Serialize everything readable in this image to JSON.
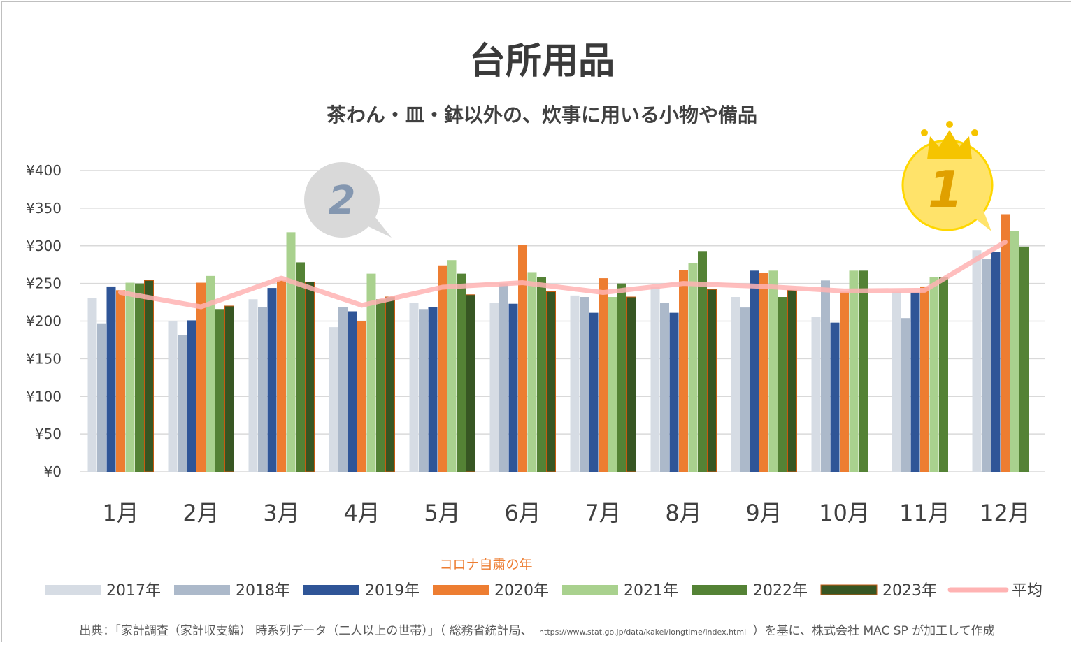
{
  "colors": {
    "2017年": "#d6dce4",
    "2018年": "#acb9ca",
    "2019年": "#2f5597",
    "2020年": "#ed7d31",
    "2021年": "#a9d18e",
    "2022年": "#548235",
    "2023年": "#375623",
    "平均": "#ffb3b3",
    "rank1_fill": "#ffe36a",
    "rank1_text": "#e0a000",
    "rank2_fill": "#d9d9d9",
    "rank2_text": "#8497b0",
    "crown": "#f5c400"
  },
  "annotation": "コロナ自粛の年",
  "ranks": {
    "first": "1",
    "second": "2"
  },
  "source": {
    "prefix": "出典：「家計調査（家計収支編） 時系列データ（二人以上の世帯）」（ 総務省統計局、",
    "url": "https://www.stat.go.jp/data/kakei/longtime/index.html",
    "suffix": "）を基に、株式会社 MAC SP が加工して作成"
  },
  "chart_data": {
    "type": "bar",
    "title": "台所用品",
    "subtitle": "茶わん・皿・鉢以外の、炊事に用いる小物や備品",
    "categories": [
      "1月",
      "2月",
      "3月",
      "4月",
      "5月",
      "6月",
      "7月",
      "8月",
      "9月",
      "10月",
      "11月",
      "12月"
    ],
    "ylim": [
      0,
      400
    ],
    "yticks": [
      0,
      50,
      100,
      150,
      200,
      250,
      300,
      350,
      400
    ],
    "ytick_labels": [
      "¥0",
      "¥50",
      "¥100",
      "¥150",
      "¥200",
      "¥250",
      "¥300",
      "¥350",
      "¥400"
    ],
    "grid": true,
    "legend_position": "bottom",
    "series": [
      {
        "name": "2017年",
        "values": [
          231,
          200,
          229,
          192,
          224,
          224,
          234,
          246,
          232,
          206,
          239,
          294
        ]
      },
      {
        "name": "2018年",
        "values": [
          197,
          181,
          219,
          219,
          216,
          250,
          232,
          224,
          218,
          254,
          204,
          283
        ]
      },
      {
        "name": "2019年",
        "values": [
          246,
          201,
          244,
          213,
          219,
          223,
          211,
          211,
          267,
          198,
          238,
          292
        ]
      },
      {
        "name": "2020年",
        "values": [
          241,
          251,
          254,
          200,
          274,
          301,
          257,
          268,
          264,
          239,
          246,
          342
        ]
      },
      {
        "name": "2021年",
        "values": [
          251,
          260,
          318,
          263,
          281,
          265,
          232,
          277,
          267,
          267,
          258,
          320
        ]
      },
      {
        "name": "2022年",
        "values": [
          250,
          216,
          278,
          229,
          263,
          258,
          250,
          293,
          232,
          267,
          258,
          299
        ]
      },
      {
        "name": "2023年",
        "values": [
          254,
          220,
          252,
          232,
          235,
          239,
          232,
          242,
          241,
          null,
          null,
          null
        ]
      }
    ],
    "average": {
      "name": "平均",
      "values": [
        238,
        219,
        257,
        221,
        245,
        251,
        238,
        250,
        246,
        240,
        241,
        305
      ]
    }
  }
}
